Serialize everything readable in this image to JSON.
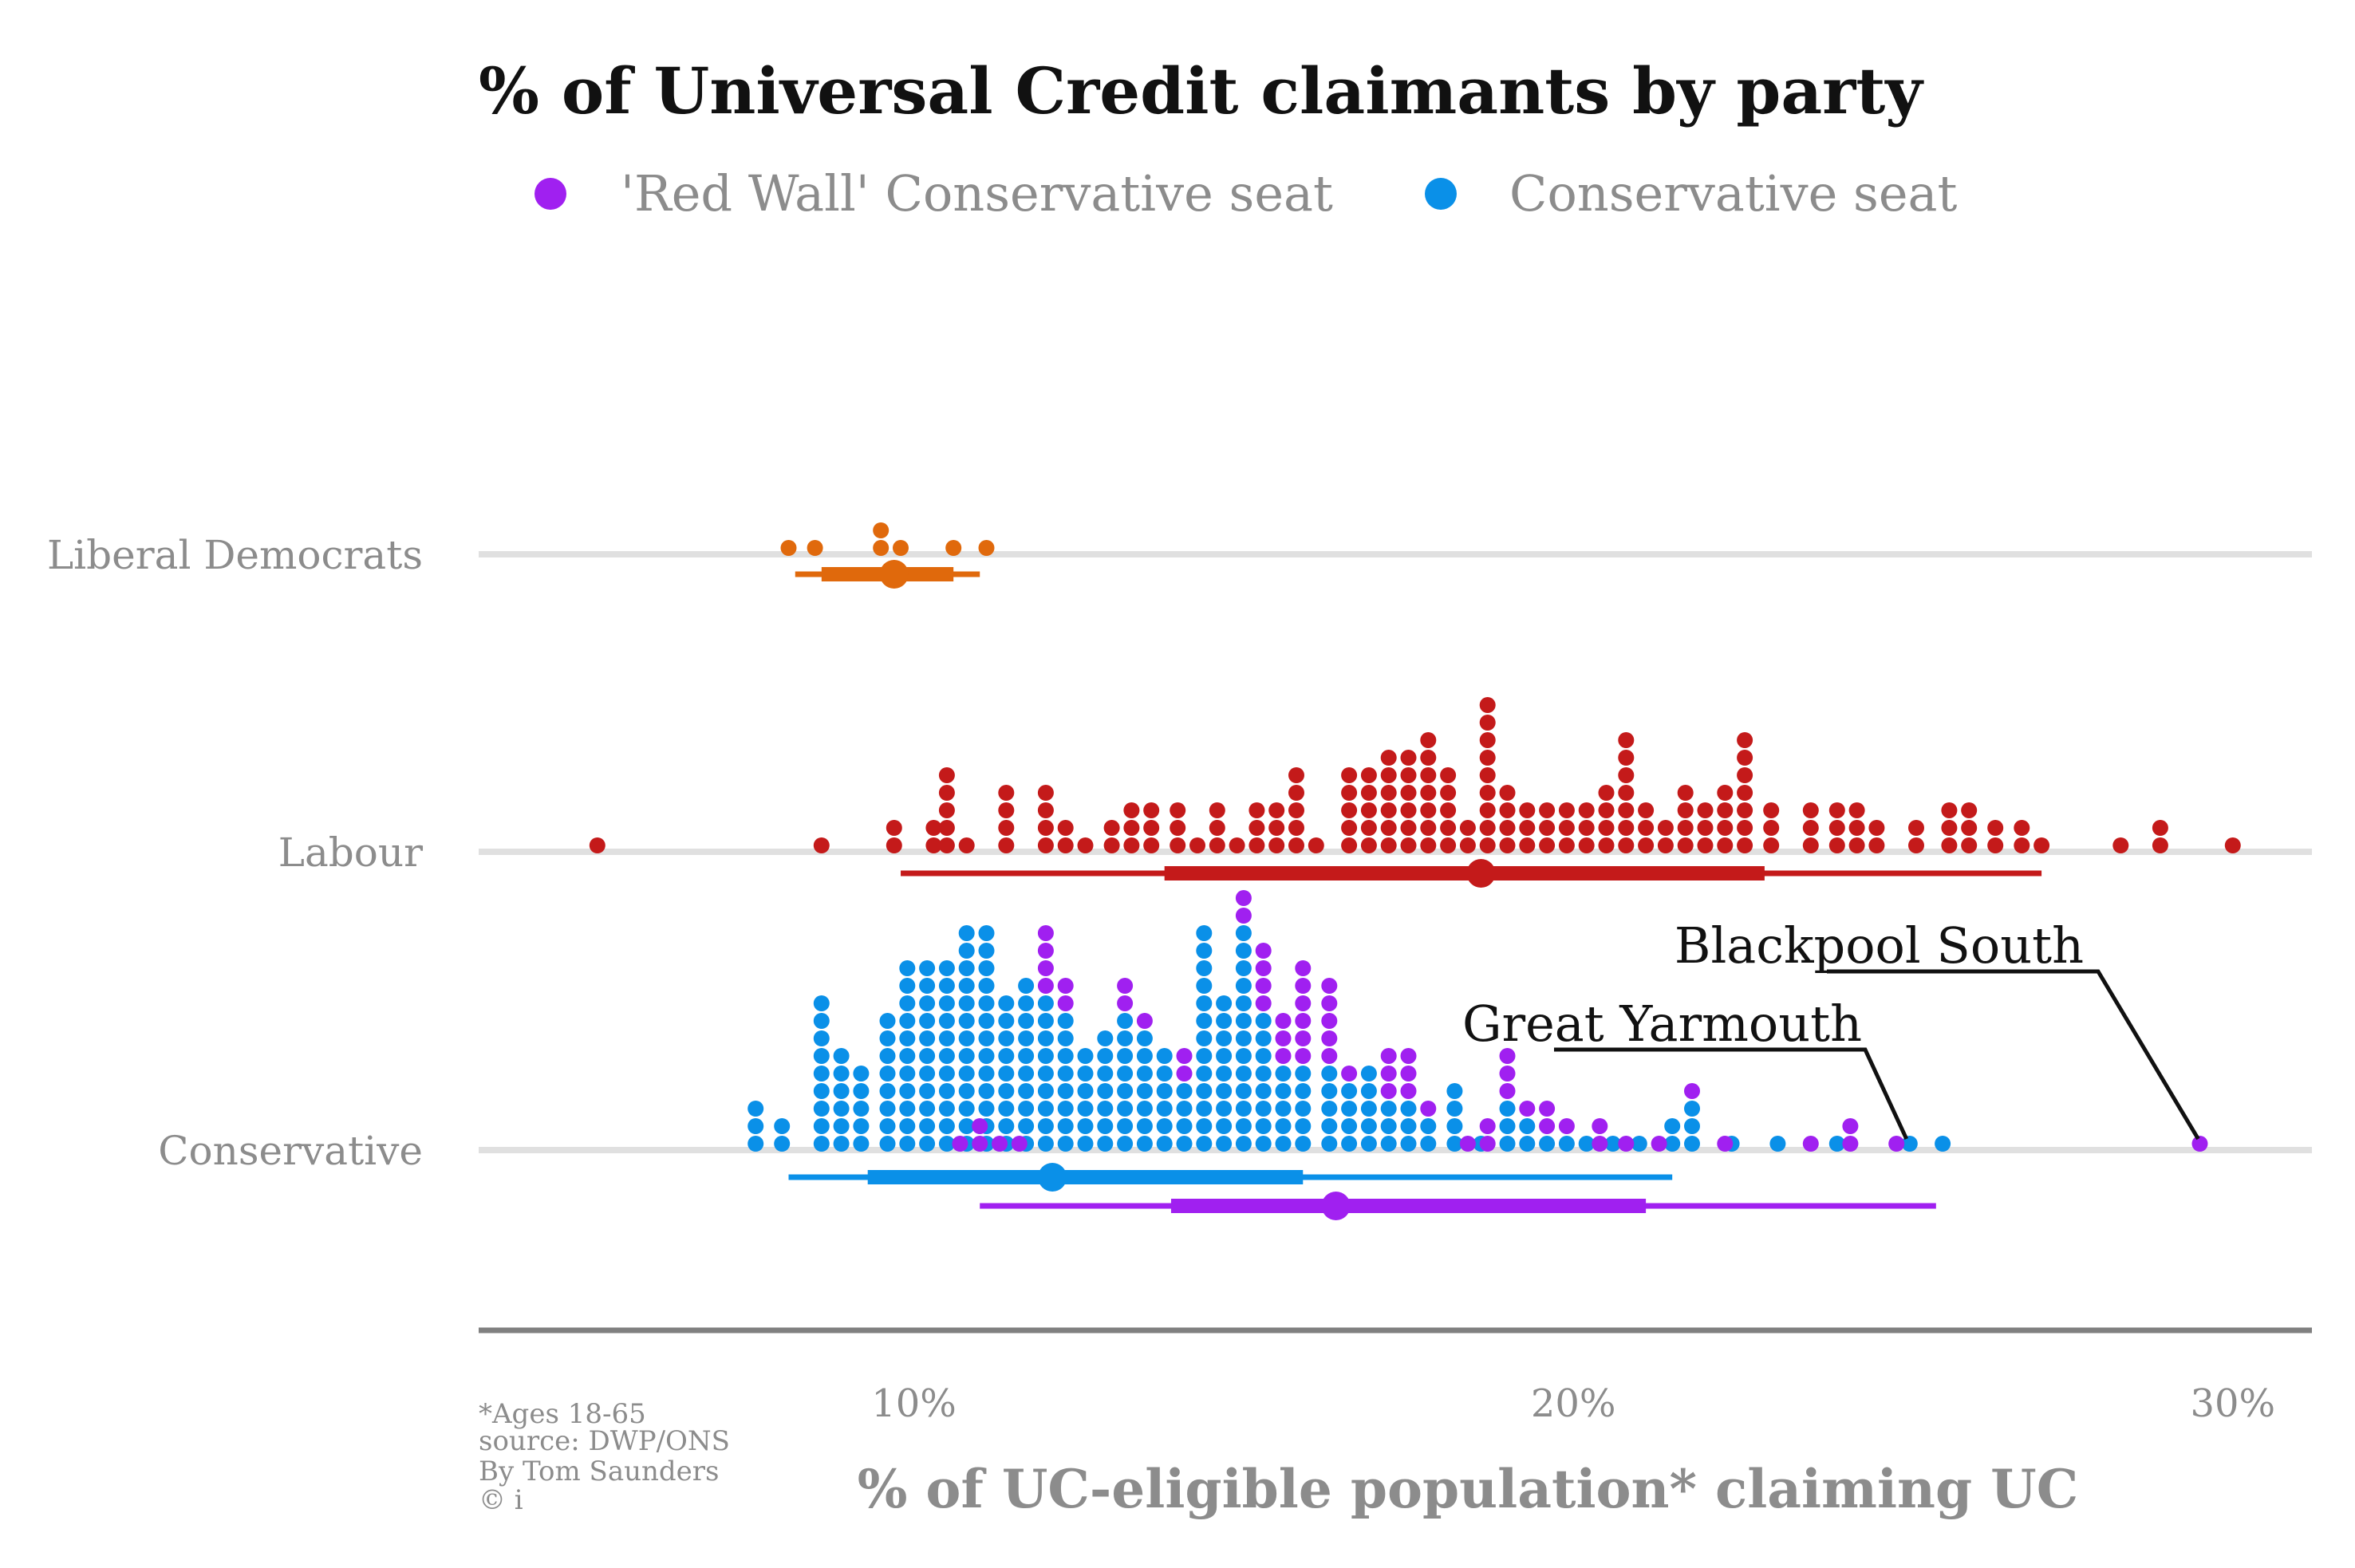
{
  "chart_data": {
    "type": "scatter",
    "title": "% of Universal Credit claimants by party",
    "xlabel": "% of UC-eligible population* claiming UC",
    "ylabel": "",
    "xlim": [
      3.4,
      31.2
    ],
    "x_ticks": [
      10,
      20,
      30
    ],
    "x_tick_labels": [
      "10%",
      "20%",
      "30%"
    ],
    "grid": "horizontal category lines",
    "legend_position": "top",
    "legend": [
      {
        "label": "'Red Wall' Conservative seat",
        "color": "#a020f0"
      },
      {
        "label": "Conservative seat",
        "color": "#0a90e8"
      }
    ],
    "categories": [
      "Liberal Democrats",
      "Labour",
      "Conservative"
    ],
    "colors": {
      "Liberal Democrats": "#e0690c",
      "Labour": "#c41a1a",
      "Conservative": "#0a90e8",
      "Red Wall": "#a020f0",
      "gridline": "#e0e0e0",
      "axis": "#808080"
    },
    "series": [
      {
        "name": "Liberal Democrats",
        "category": "Liberal Democrats",
        "bin_width": 0.3,
        "bins": [
          [
            8.1,
            1
          ],
          [
            8.5,
            1
          ],
          [
            9.5,
            2
          ],
          [
            9.8,
            1
          ],
          [
            10.6,
            1
          ],
          [
            11.1,
            1
          ]
        ],
        "summary": {
          "min": 8.2,
          "q1": 8.6,
          "median": 9.7,
          "q3": 10.6,
          "max": 11.0
        }
      },
      {
        "name": "Labour",
        "category": "Labour",
        "bin_width": 0.3,
        "bins": [
          [
            5.2,
            1
          ],
          [
            8.6,
            1
          ],
          [
            9.7,
            2
          ],
          [
            10.3,
            2
          ],
          [
            10.5,
            5
          ],
          [
            10.8,
            1
          ],
          [
            11.4,
            4
          ],
          [
            12.0,
            4
          ],
          [
            12.3,
            2
          ],
          [
            12.6,
            1
          ],
          [
            13.0,
            2
          ],
          [
            13.3,
            3
          ],
          [
            13.6,
            3
          ],
          [
            14.0,
            3
          ],
          [
            14.3,
            1
          ],
          [
            14.6,
            3
          ],
          [
            14.9,
            1
          ],
          [
            15.2,
            3
          ],
          [
            15.5,
            3
          ],
          [
            15.8,
            5
          ],
          [
            16.1,
            1
          ],
          [
            16.6,
            5
          ],
          [
            16.9,
            5
          ],
          [
            17.2,
            6
          ],
          [
            17.5,
            6
          ],
          [
            17.8,
            7
          ],
          [
            18.1,
            5
          ],
          [
            18.4,
            2
          ],
          [
            18.7,
            9
          ],
          [
            19.0,
            4
          ],
          [
            19.3,
            3
          ],
          [
            19.6,
            3
          ],
          [
            19.9,
            3
          ],
          [
            20.2,
            3
          ],
          [
            20.5,
            4
          ],
          [
            20.8,
            7
          ],
          [
            21.1,
            3
          ],
          [
            21.4,
            2
          ],
          [
            21.7,
            4
          ],
          [
            22.0,
            3
          ],
          [
            22.3,
            4
          ],
          [
            22.6,
            7
          ],
          [
            23.0,
            3
          ],
          [
            23.6,
            3
          ],
          [
            24.0,
            3
          ],
          [
            24.3,
            3
          ],
          [
            24.6,
            2
          ],
          [
            25.2,
            2
          ],
          [
            25.7,
            3
          ],
          [
            26.0,
            3
          ],
          [
            26.4,
            2
          ],
          [
            26.8,
            2
          ],
          [
            27.1,
            1
          ],
          [
            28.3,
            1
          ],
          [
            28.9,
            2
          ],
          [
            30.0,
            1
          ]
        ],
        "summary": {
          "min": 9.8,
          "q1": 13.8,
          "median": 18.6,
          "q3": 22.9,
          "max": 27.1
        }
      },
      {
        "name": "Conservative seat",
        "category": "Conservative",
        "bin_width": 0.3,
        "bins": [
          [
            7.6,
            3
          ],
          [
            8.0,
            2
          ],
          [
            8.6,
            9
          ],
          [
            8.9,
            6
          ],
          [
            9.2,
            5
          ],
          [
            9.6,
            8
          ],
          [
            9.9,
            11
          ],
          [
            10.2,
            11
          ],
          [
            10.5,
            11
          ],
          [
            10.8,
            13
          ],
          [
            11.1,
            13
          ],
          [
            11.4,
            9
          ],
          [
            11.7,
            10
          ],
          [
            12.0,
            9
          ],
          [
            12.3,
            8
          ],
          [
            12.6,
            6
          ],
          [
            12.9,
            7
          ],
          [
            13.2,
            8
          ],
          [
            13.5,
            7
          ],
          [
            13.8,
            6
          ],
          [
            14.1,
            4
          ],
          [
            14.4,
            13
          ],
          [
            14.7,
            9
          ],
          [
            15.0,
            13
          ],
          [
            15.3,
            8
          ],
          [
            15.6,
            5
          ],
          [
            15.9,
            5
          ],
          [
            16.3,
            5
          ],
          [
            16.6,
            4
          ],
          [
            16.9,
            5
          ],
          [
            17.2,
            3
          ],
          [
            17.5,
            3
          ],
          [
            17.8,
            2
          ],
          [
            18.2,
            4
          ],
          [
            18.6,
            1
          ],
          [
            19.0,
            3
          ],
          [
            19.3,
            2
          ],
          [
            19.6,
            1
          ],
          [
            19.9,
            1
          ],
          [
            20.2,
            1
          ],
          [
            20.6,
            1
          ],
          [
            21.0,
            1
          ],
          [
            21.5,
            2
          ],
          [
            21.8,
            3
          ],
          [
            22.4,
            1
          ],
          [
            23.1,
            1
          ],
          [
            24.0,
            1
          ],
          [
            25.1,
            1
          ],
          [
            25.6,
            1
          ]
        ],
        "summary": {
          "min": 8.1,
          "q1": 9.3,
          "median": 12.1,
          "q3": 15.9,
          "max": 21.5
        }
      },
      {
        "name": "'Red Wall' Conservative seat",
        "category": "Conservative",
        "bin_width": 0.3,
        "bins": [
          [
            10.7,
            1
          ],
          [
            11.0,
            2
          ],
          [
            11.3,
            1
          ],
          [
            11.6,
            1
          ],
          [
            12.0,
            4
          ],
          [
            12.3,
            2
          ],
          [
            13.2,
            2
          ],
          [
            13.5,
            1
          ],
          [
            14.1,
            2
          ],
          [
            15.0,
            2
          ],
          [
            15.3,
            4
          ],
          [
            15.6,
            3
          ],
          [
            15.9,
            6
          ],
          [
            16.3,
            5
          ],
          [
            16.6,
            1
          ],
          [
            17.2,
            3
          ],
          [
            17.5,
            3
          ],
          [
            17.8,
            1
          ],
          [
            18.4,
            1
          ],
          [
            18.7,
            2
          ],
          [
            19.0,
            3
          ],
          [
            19.3,
            1
          ],
          [
            19.6,
            2
          ],
          [
            19.9,
            1
          ],
          [
            20.4,
            2
          ],
          [
            20.8,
            1
          ],
          [
            21.3,
            1
          ],
          [
            21.8,
            1
          ],
          [
            22.3,
            1
          ],
          [
            23.6,
            1
          ],
          [
            24.2,
            2
          ],
          [
            24.9,
            1
          ],
          [
            29.5,
            1
          ]
        ],
        "summary": {
          "min": 11.0,
          "q1": 13.9,
          "median": 16.4,
          "q3": 21.1,
          "max": 25.5
        }
      }
    ],
    "annotations": [
      {
        "text": "Blackpool South",
        "x": 29.5,
        "category": "Conservative"
      },
      {
        "text": "Great Yarmouth",
        "x": 25.1,
        "category": "Conservative"
      }
    ],
    "footnotes": [
      "*Ages 18-65",
      "source: DWP/ONS",
      "By Tom Saunders",
      "© i"
    ]
  }
}
